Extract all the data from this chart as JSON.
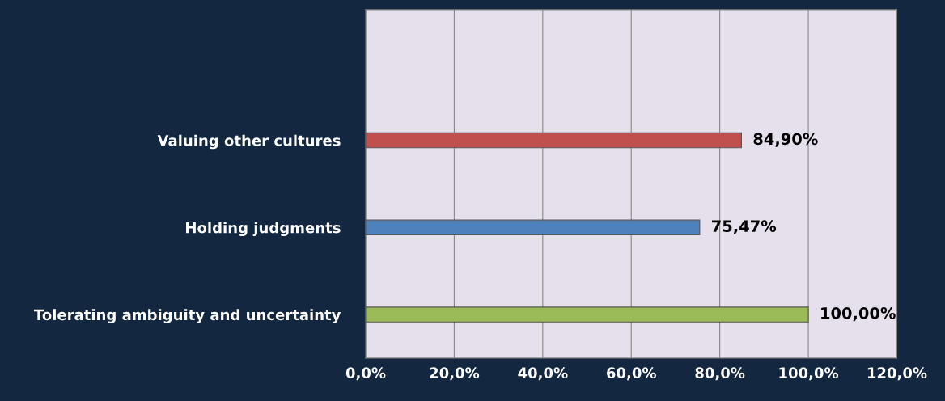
{
  "chart_data": {
    "type": "bar",
    "orientation": "horizontal",
    "categories": [
      null,
      "Valuing other cultures",
      "Holding judgments",
      "Tolerating ambiguity and uncertainty"
    ],
    "values": [
      null,
      84.9,
      75.47,
      100.0
    ],
    "colors": [
      "#c0504d",
      "#c0504d",
      "#4f81bd",
      "#9bbb59"
    ],
    "value_labels": [
      null,
      "84,90%",
      "75,47%",
      "100,00%"
    ],
    "xlim": [
      0,
      120
    ],
    "xticks": [
      {
        "value": 0,
        "label": "0,0%"
      },
      {
        "value": 20,
        "label": "20,0%"
      },
      {
        "value": 40,
        "label": "40,0%"
      },
      {
        "value": 60,
        "label": "60,0%"
      },
      {
        "value": 80,
        "label": "80,0%"
      },
      {
        "value": 100,
        "label": "100,0%"
      },
      {
        "value": 120,
        "label": "120,0%"
      }
    ],
    "grid": "x"
  }
}
